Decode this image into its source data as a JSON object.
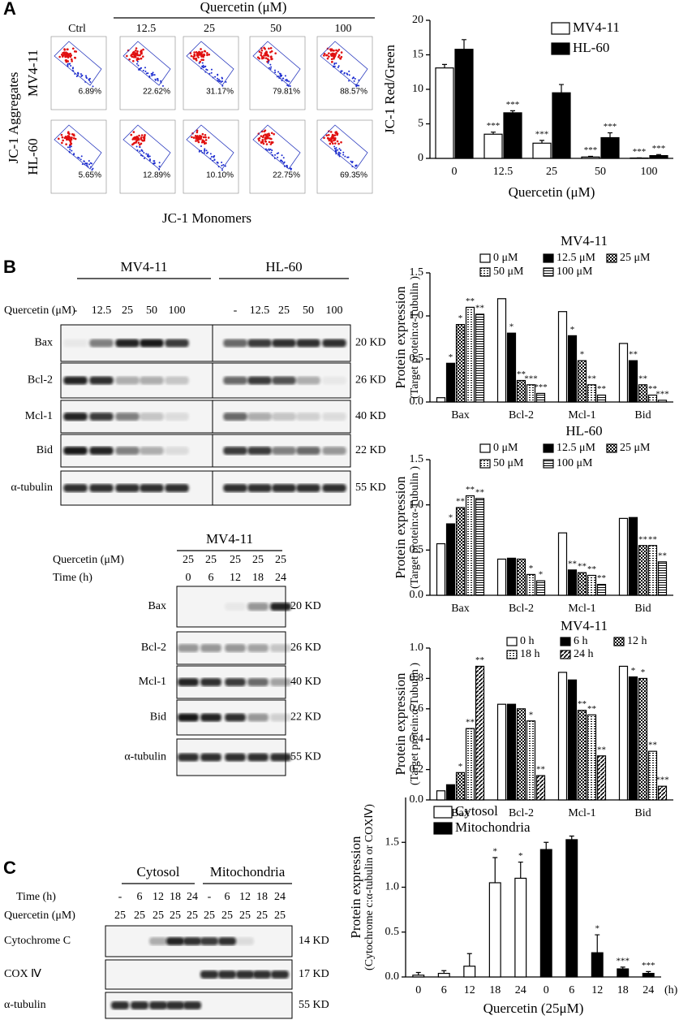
{
  "panel_labels": [
    "A",
    "B",
    "C"
  ],
  "flow": {
    "title": "Quercetin (μM)",
    "columns": [
      "Ctrl",
      "12.5",
      "25",
      "50",
      "100"
    ],
    "rows": [
      "MV4-11",
      "HL-60"
    ],
    "percents": [
      [
        "6.89%",
        "22.62%",
        "31.17%",
        "79.81%",
        "88.57%"
      ],
      [
        "5.65%",
        "12.89%",
        "10.10%",
        "22.75%",
        "69.35%"
      ]
    ],
    "ylabel": "JC-1 Aggregates",
    "xlabel": "JC-1 Monomers"
  },
  "blots": [
    {
      "groups": [
        "MV4-11",
        "HL-60"
      ],
      "header": [
        {
          "label": "Quercetin (μM)",
          "lanes": [
            "-",
            "12.5",
            "25",
            "50",
            "100",
            "-",
            "12.5",
            "25",
            "50",
            "100"
          ]
        }
      ],
      "proteins": [
        "Bax",
        "Bcl-2",
        "Mcl-1",
        "Bid",
        "α-tubulin"
      ],
      "sizes": [
        "20 KD",
        "26 KD",
        "40 KD",
        "22 KD",
        "55 KD"
      ]
    },
    {
      "groups": [
        "MV4-11"
      ],
      "header": [
        {
          "label": "Quercetin (μM)",
          "lanes": [
            "25",
            "25",
            "25",
            "25",
            "25"
          ]
        },
        {
          "label": "Time (h)",
          "lanes": [
            "0",
            "6",
            "12",
            "18",
            "24"
          ]
        }
      ],
      "proteins": [
        "Bax",
        "Bcl-2",
        "Mcl-1",
        "Bid",
        "α-tubulin"
      ],
      "sizes": [
        "20 KD",
        "26 KD",
        "40 KD",
        "22 KD",
        "55 KD"
      ]
    },
    {
      "groups": [
        "Cytosol",
        "Mitochondria"
      ],
      "header": [
        {
          "label": "Time (h)",
          "lanes": [
            "-",
            "6",
            "12",
            "18",
            "24",
            "-",
            "6",
            "12",
            "18",
            "24"
          ]
        },
        {
          "label": "Quercetin (μM)",
          "lanes": [
            "25",
            "25",
            "25",
            "25",
            "25",
            "25",
            "25",
            "25",
            "25",
            "25"
          ]
        }
      ],
      "proteins": [
        "Cytochrome C",
        "COX Ⅳ",
        "α-tubulin"
      ],
      "sizes": [
        "14 KD",
        "17 KD",
        "55 KD"
      ]
    }
  ],
  "chart_data": [
    {
      "type": "bar",
      "categories": [
        "0",
        "12.5",
        "25",
        "50",
        "100"
      ],
      "xlabel": "Quercetin (μM)",
      "ylabel": [
        "JC-1 Red/Green"
      ],
      "ylim": [
        0,
        20
      ],
      "yticks": [
        0,
        5,
        10,
        15,
        20
      ],
      "legend": "upper right",
      "series": [
        {
          "name": "MV4-11",
          "color": "#ffffff",
          "values": [
            13.1,
            3.5,
            2.2,
            0.2,
            0.05
          ],
          "errors": [
            0.5,
            0.3,
            0.4,
            0.1,
            0.02
          ],
          "sig": [
            null,
            "***",
            "***",
            "***",
            "***"
          ]
        },
        {
          "name": "HL-60",
          "color": "#000000",
          "values": [
            15.8,
            6.6,
            9.5,
            3.0,
            0.4
          ],
          "errors": [
            1.4,
            0.3,
            1.2,
            0.7,
            0.15
          ],
          "sig": [
            null,
            "***",
            null,
            "***",
            "***"
          ]
        }
      ]
    },
    {
      "type": "bar",
      "title": "MV4-11",
      "categories": [
        "Bax",
        "Bcl-2",
        "Mcl-1",
        "Bid"
      ],
      "ylabel": [
        "Protein expression",
        "(Target protein:α-Tubulin )"
      ],
      "ylim": [
        0,
        1.5
      ],
      "yticks": [
        {
          "value": 0,
          "label": "0.0"
        },
        0.5,
        {
          "value": 1,
          "label": "1.0"
        },
        1.5
      ],
      "legend": "top",
      "series": [
        {
          "name": "0 μM",
          "color": "#ffffff",
          "values": [
            0.05,
            1.2,
            1.05,
            0.68
          ],
          "sig": [
            null,
            null,
            null,
            null
          ]
        },
        {
          "name": "12.5 μM",
          "color": "#000000",
          "values": [
            0.45,
            0.8,
            0.77,
            0.48
          ],
          "sig": [
            "*",
            "*",
            "*",
            "**"
          ]
        },
        {
          "name": "25 μM",
          "color": "#000000",
          "pattern": "check",
          "values": [
            0.9,
            0.25,
            0.48,
            0.2
          ],
          "sig": [
            "*",
            "**",
            "*",
            "**"
          ]
        },
        {
          "name": "50 μM",
          "color": "#000000",
          "pattern": "dots",
          "values": [
            1.1,
            0.2,
            0.2,
            0.08
          ],
          "sig": [
            "**",
            "***",
            "**",
            "**"
          ]
        },
        {
          "name": "100 μM",
          "color": "#000000",
          "pattern": "hlines",
          "values": [
            1.02,
            0.1,
            0.08,
            0.02
          ],
          "sig": [
            "**",
            "***",
            "**",
            "***"
          ]
        }
      ]
    },
    {
      "type": "bar",
      "title": "HL-60",
      "categories": [
        "Bax",
        "Bcl-2",
        "Mcl-1",
        "Bid"
      ],
      "ylabel": [
        "Protein expression",
        "(Target protein:α-Tubulin )"
      ],
      "ylim": [
        0,
        1.5
      ],
      "yticks": [
        {
          "value": 0,
          "label": "0.0"
        },
        0.5,
        {
          "value": 1,
          "label": "1.0"
        },
        1.5
      ],
      "legend": "top",
      "series": [
        {
          "name": "0 μM",
          "color": "#ffffff",
          "values": [
            0.57,
            0.4,
            0.69,
            0.85
          ],
          "sig": [
            null,
            null,
            null,
            null
          ]
        },
        {
          "name": "12.5 μM",
          "color": "#000000",
          "values": [
            0.79,
            0.41,
            0.28,
            0.86
          ],
          "sig": [
            "*",
            null,
            "**",
            null
          ]
        },
        {
          "name": "25 μM",
          "color": "#000000",
          "pattern": "check",
          "values": [
            0.97,
            0.4,
            0.25,
            0.55
          ],
          "sig": [
            "**",
            null,
            "**",
            "**"
          ]
        },
        {
          "name": "50 μM",
          "color": "#000000",
          "pattern": "dots",
          "values": [
            1.1,
            0.23,
            0.22,
            0.55
          ],
          "sig": [
            "**",
            "*",
            "**",
            "**"
          ]
        },
        {
          "name": "100 μM",
          "color": "#000000",
          "pattern": "hlines",
          "values": [
            1.07,
            0.16,
            0.12,
            0.37
          ],
          "sig": [
            "**",
            "*",
            "**",
            "**"
          ]
        }
      ]
    },
    {
      "type": "bar",
      "title": "MV4-11",
      "categories": [
        "Bax",
        "Bcl-2",
        "Mcl-1",
        "Bid"
      ],
      "ylabel": [
        "Protein expression",
        "(Target protein:α-Tubulin )"
      ],
      "ylim": [
        0,
        1
      ],
      "yticks": [
        {
          "value": 0,
          "label": "0.0"
        },
        0.2,
        0.4,
        0.6,
        0.8,
        {
          "value": 1,
          "label": "1.0"
        }
      ],
      "legend": "top",
      "series": [
        {
          "name": "0 h",
          "color": "#ffffff",
          "values": [
            0.06,
            0.63,
            0.84,
            0.88
          ],
          "sig": [
            null,
            null,
            null,
            null
          ]
        },
        {
          "name": "6 h",
          "color": "#000000",
          "values": [
            0.1,
            0.63,
            0.79,
            0.81
          ],
          "sig": [
            null,
            null,
            null,
            "*"
          ]
        },
        {
          "name": "12 h",
          "color": "#000000",
          "pattern": "check",
          "values": [
            0.18,
            0.6,
            0.59,
            0.8
          ],
          "sig": [
            "*",
            null,
            "**",
            "*"
          ]
        },
        {
          "name": "18 h",
          "color": "#000000",
          "pattern": "dots",
          "values": [
            0.47,
            0.52,
            0.56,
            0.32
          ],
          "sig": [
            "**",
            "*",
            "**",
            "**"
          ]
        },
        {
          "name": "24 h",
          "color": "#000000",
          "pattern": "diag",
          "values": [
            0.88,
            0.16,
            0.29,
            0.09
          ],
          "sig": [
            "**",
            "**",
            "**",
            "***"
          ]
        }
      ]
    },
    {
      "type": "bar",
      "categories": [
        "0",
        "6",
        "12",
        "18",
        "24",
        "0",
        "6",
        "12",
        "18",
        "24"
      ],
      "xunit": "(h)",
      "xlabel": "Quercetin (25μM)",
      "ylabel": [
        "Protein expression",
        "(Cytochrome c:α-tubulin or COXⅣ)"
      ],
      "ylim": [
        0,
        2
      ],
      "yticks": [
        {
          "value": 0,
          "label": "0.0"
        },
        0.5,
        {
          "value": 1,
          "label": "1.0"
        },
        1.5
      ],
      "legend": "upper left",
      "series": [
        {
          "name": "Cytosol",
          "color": "#ffffff",
          "values": [
            0.02,
            0.04,
            0.12,
            1.05,
            1.1,
            null,
            null,
            null,
            null,
            null
          ],
          "errors": [
            0.03,
            0.03,
            0.14,
            0.28,
            0.18,
            null,
            null,
            null,
            null,
            null
          ],
          "sig": [
            null,
            null,
            null,
            "*",
            "*",
            null,
            null,
            null,
            null,
            null
          ]
        },
        {
          "name": "Mitochondria",
          "color": "#000000",
          "values": [
            null,
            null,
            null,
            null,
            null,
            1.42,
            1.53,
            0.27,
            0.09,
            0.04
          ],
          "errors": [
            null,
            null,
            null,
            null,
            null,
            0.08,
            0.04,
            0.2,
            0.02,
            0.02
          ],
          "sig": [
            null,
            null,
            null,
            null,
            null,
            null,
            null,
            "*",
            "***",
            "***"
          ]
        }
      ]
    }
  ]
}
